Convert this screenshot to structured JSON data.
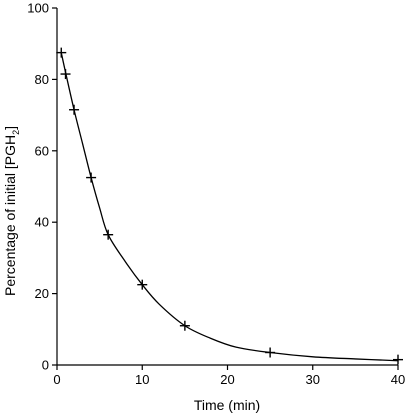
{
  "chart_data": {
    "type": "scatter",
    "title": "",
    "xlabel": "Time (min)",
    "ylabel": {
      "prefix": "Percentage of initial [PGH",
      "subscript": "2",
      "suffix": "]"
    },
    "xlim": [
      0,
      40
    ],
    "ylim": [
      0,
      100
    ],
    "x_ticks": [
      0,
      10,
      20,
      30,
      40
    ],
    "y_ticks": [
      0,
      20,
      40,
      60,
      80,
      100
    ],
    "grid": false,
    "series": [
      {
        "marker": "plus",
        "fit_line": true,
        "x": [
          0.5,
          1,
          2,
          4,
          6,
          10,
          15,
          25,
          40
        ],
        "y": [
          87.5,
          81.5,
          71.5,
          52.5,
          36.5,
          22.5,
          11,
          3.5,
          1.5
        ]
      }
    ],
    "fit_curve": {
      "x": [
        0.5,
        1,
        2,
        3,
        4,
        5,
        6,
        8,
        10,
        12,
        15,
        18,
        21,
        25,
        30,
        35,
        40
      ],
      "y": [
        87.5,
        82,
        71.5,
        62,
        52.5,
        44,
        36.5,
        29,
        22.5,
        17,
        11,
        7.5,
        5,
        3.5,
        2.3,
        1.7,
        1.2
      ]
    },
    "colors": {
      "axis": "#000000",
      "line": "#000000",
      "background": "#ffffff"
    }
  }
}
